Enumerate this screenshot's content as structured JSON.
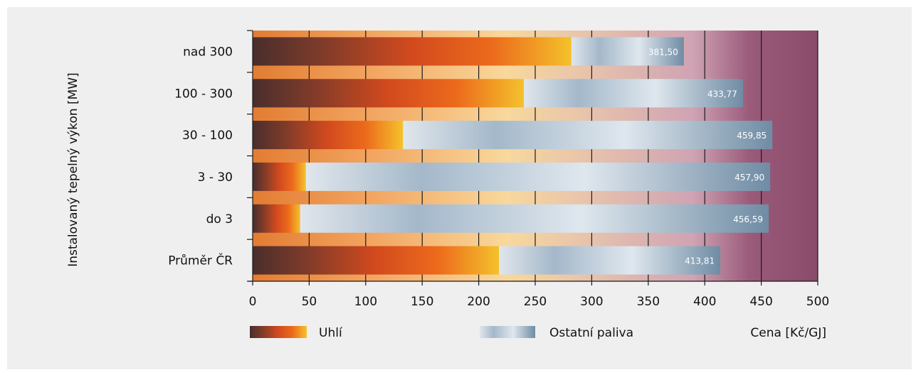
{
  "chart_data": {
    "type": "bar",
    "orientation": "horizontal",
    "stacked": true,
    "ylabel": "Instalovaný tepelný výkon [MW]",
    "xlabel": "Cena [Kč/GJ]",
    "xlim": [
      0,
      500
    ],
    "xticks": [
      0,
      50,
      100,
      150,
      200,
      250,
      300,
      350,
      400,
      450,
      500
    ],
    "xtick_labels": [
      "0",
      "50",
      "100",
      "150",
      "200",
      "250",
      "300",
      "350",
      "400",
      "450",
      "500"
    ],
    "categories": [
      "nad 300",
      "100 - 300",
      "30 - 100",
      "3 - 30",
      "do 3",
      "Průměr ČR"
    ],
    "series": [
      {
        "name": "Uhlí",
        "values": [
          282,
          240,
          133,
          47,
          42,
          218
        ]
      },
      {
        "name": "Ostatní paliva",
        "values": [
          99.5,
          193.77,
          326.85,
          410.9,
          414.59,
          195.81
        ]
      }
    ],
    "totals": [
      381.5,
      433.77,
      459.85,
      457.9,
      456.59,
      413.81
    ],
    "total_labels": [
      "381,50",
      "433,77",
      "459,85",
      "457,90",
      "456,59",
      "413,81"
    ],
    "legend_position": "bottom",
    "grid": true,
    "colors": {
      "coal_gradient": [
        "#4a2e2c",
        "#7a3a2a",
        "#d24a1e",
        "#ec6a1c",
        "#f4c22c"
      ],
      "other_gradient": [
        "#e0e6ec",
        "#a4b8ca",
        "#dfe7ee",
        "#6f8ca4"
      ],
      "background_gradient": [
        "#e27c32",
        "#f2a35e",
        "#f8d89c",
        "#e6c2ad",
        "#cfa3b3",
        "#9a5a7a",
        "#8a4a6a"
      ],
      "panel": "#efefef"
    }
  },
  "legend": {
    "coal_label": "Uhlí",
    "other_label": "Ostatní paliva"
  }
}
